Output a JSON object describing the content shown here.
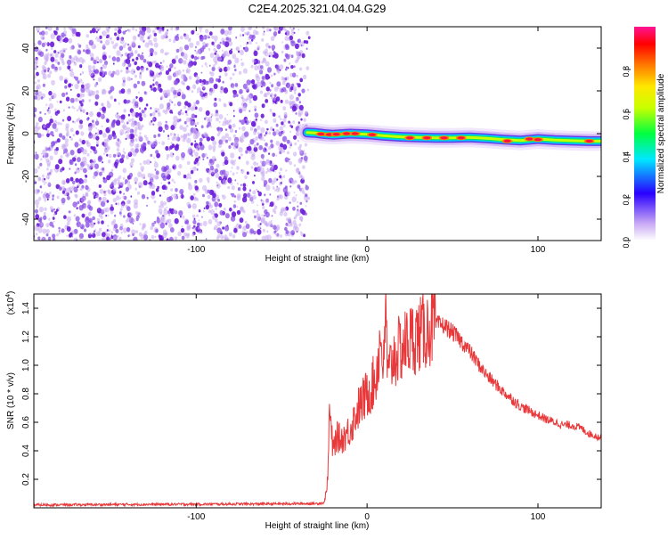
{
  "page_title": "C2E4.2025.321.04.04.G29",
  "colors": {
    "snr_line": "#e8383a",
    "scatter_dark": "#6a1bd8",
    "scatter_light": "#c6a8f0"
  },
  "chart_data": [
    {
      "type": "heatmap",
      "title": "C2E4.2025.321.04.04.G29",
      "xlabel": "Height of straight line (km)",
      "ylabel": "Frequency (Hz)",
      "xlim": [
        -195,
        137
      ],
      "ylim": [
        -50,
        50
      ],
      "xticks": [
        -100,
        0,
        100
      ],
      "yticks": [
        -40,
        -20,
        0,
        20,
        40
      ],
      "noise_region": {
        "x": [
          -195,
          -35
        ],
        "y": [
          -50,
          50
        ]
      },
      "ridge": {
        "x": [
          -35,
          -30,
          -25,
          -20,
          -10,
          0,
          10,
          20,
          30,
          40,
          50,
          60,
          70,
          80,
          90,
          100,
          110,
          120,
          130,
          137
        ],
        "freq": [
          0.5,
          0.3,
          -0.2,
          -0.5,
          0,
          -0.3,
          -1,
          -1.5,
          -1.8,
          -2,
          -2,
          -1.8,
          -2.2,
          -2.8,
          -3.2,
          -2.5,
          -3,
          -3.3,
          -3.5,
          -3.5
        ],
        "peaks": [
          [
            -27,
            -0.2
          ],
          [
            -22,
            -0.4
          ],
          [
            -18,
            -0.3
          ],
          [
            -12,
            0
          ],
          [
            -7,
            0
          ],
          [
            3,
            -0.5
          ],
          [
            25,
            -2
          ],
          [
            35,
            -2
          ],
          [
            45,
            -2
          ],
          [
            55,
            -2
          ],
          [
            82,
            -3.5
          ],
          [
            95,
            -2.5
          ],
          [
            100,
            -2.8
          ],
          [
            130,
            -3.5
          ]
        ]
      },
      "colorbar": {
        "label": "Normalized spectral amplitude",
        "range": [
          0,
          1
        ],
        "ticks": [
          0.0,
          0.2,
          0.4,
          0.6,
          0.8
        ],
        "tick_labels": [
          "0.0",
          "0.2",
          "0.4",
          "0.6",
          "0.8"
        ]
      }
    },
    {
      "type": "line",
      "xlabel": "Height of straight line (km)",
      "ylabel": "SNR (10 * v/v)",
      "y_multiplier": "(x10",
      "y_multiplier_exp": "4",
      "y_multiplier_close": ")",
      "xlim": [
        -195,
        137
      ],
      "ylim": [
        0,
        15000
      ],
      "xticks": [
        -100,
        0,
        100
      ],
      "yticks": [
        2000,
        4000,
        6000,
        8000,
        10000,
        12000,
        14000
      ],
      "ytick_labels": [
        "0.2",
        "0.4",
        "0.6",
        "0.8",
        "1.0",
        "1.2",
        "1.4"
      ],
      "series": [
        {
          "x": [
            -195,
            -150,
            -100,
            -50,
            -30,
            -25,
            -23,
            -22,
            -21,
            -20,
            -18,
            -15,
            -10,
            -5,
            0,
            5,
            8,
            10,
            11,
            12,
            15,
            20,
            25,
            30,
            35,
            40,
            45,
            50,
            55,
            60,
            65,
            70,
            75,
            80,
            85,
            90,
            95,
            100,
            105,
            110,
            115,
            120,
            125,
            130,
            137
          ],
          "values": [
            200,
            230,
            250,
            280,
            300,
            350,
            2000,
            7000,
            5500,
            4000,
            5000,
            4800,
            5500,
            7000,
            8000,
            9000,
            12000,
            9500,
            14800,
            9000,
            10500,
            11200,
            11800,
            12100,
            12500,
            12900,
            12800,
            12300,
            11700,
            11000,
            10100,
            9300,
            8700,
            8100,
            7600,
            7100,
            6800,
            6500,
            6200,
            6000,
            5800,
            5800,
            5600,
            5200,
            4900
          ]
        }
      ]
    }
  ]
}
